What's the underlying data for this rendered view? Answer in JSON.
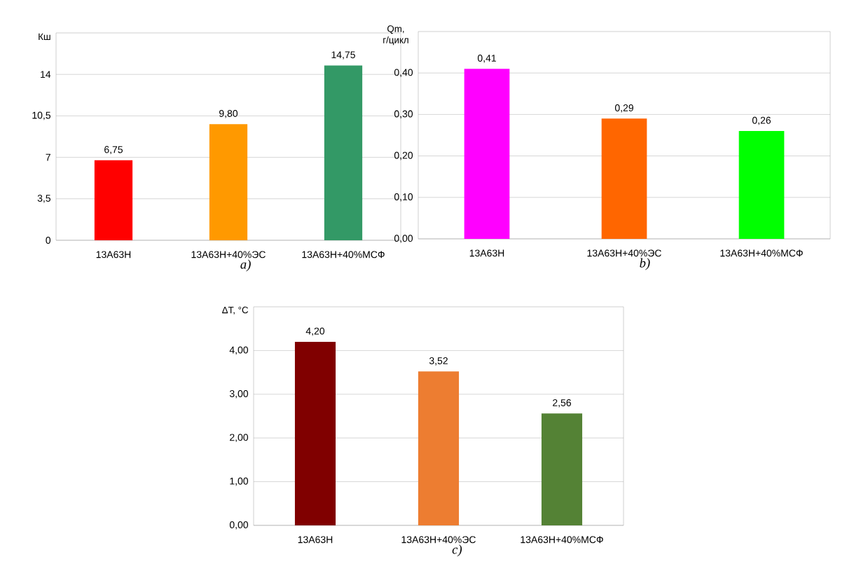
{
  "chart_data": [
    {
      "type": "bar",
      "ylabel": "Кш",
      "categories": [
        "13А63Н",
        "13А63Н+40%ЭС",
        "13А63Н+40%МСФ"
      ],
      "values": [
        6.75,
        9.8,
        14.75
      ],
      "value_labels": [
        "6,75",
        "9,80",
        "14,75"
      ],
      "colors": [
        "#ff0000",
        "#ff9900",
        "#339966"
      ],
      "ylim": [
        0,
        17.5
      ],
      "yticks": [
        0,
        {
          "value": 3.5,
          "label": "3,5"
        },
        7,
        {
          "value": 10.5,
          "label": "10,5"
        },
        14
      ],
      "grid": "y",
      "annotations": [
        "a)"
      ]
    },
    {
      "type": "bar",
      "ylabel": "Qm, г/цикл",
      "categories": [
        "13А63Н",
        "13А63Н+40%ЭС",
        "13А63Н+40%МСФ"
      ],
      "values": [
        0.41,
        0.29,
        0.26
      ],
      "value_labels": [
        "0,41",
        "0,29",
        "0,26"
      ],
      "colors": [
        "#ff00ff",
        "#ff6600",
        "#00ff00"
      ],
      "ylim": [
        0,
        0.5
      ],
      "yticks": [
        {
          "value": 0,
          "label": "0,00"
        },
        {
          "value": 0.1,
          "label": "0,10"
        },
        {
          "value": 0.2,
          "label": "0,20"
        },
        {
          "value": 0.3,
          "label": "0,30"
        },
        {
          "value": 0.4,
          "label": "0,40"
        }
      ],
      "grid": "y",
      "annotations": [
        "b)"
      ]
    },
    {
      "type": "bar",
      "ylabel": "ΔT, °C",
      "categories": [
        "13А63Н",
        "13А63Н+40%ЭС",
        "13А63Н+40%МСФ"
      ],
      "values": [
        4.2,
        3.52,
        2.56
      ],
      "value_labels": [
        "4,20",
        "3,52",
        "2,56"
      ],
      "colors": [
        "#800000",
        "#ed7d31",
        "#548235"
      ],
      "ylim": [
        0,
        5
      ],
      "yticks": [
        {
          "value": 0,
          "label": "0,00"
        },
        {
          "value": 1,
          "label": "1,00"
        },
        {
          "value": 2,
          "label": "2,00"
        },
        {
          "value": 3,
          "label": "3,00"
        },
        {
          "value": 4,
          "label": "4,00"
        }
      ],
      "grid": "y",
      "annotations": [
        "c)"
      ]
    }
  ]
}
